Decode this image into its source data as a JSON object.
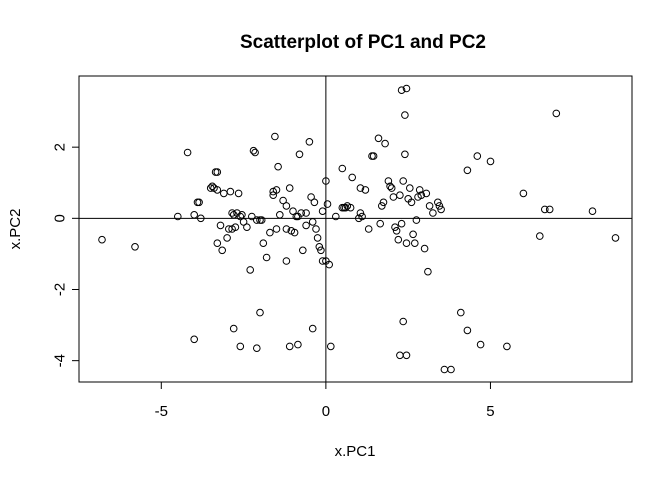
{
  "chart_data": {
    "type": "scatter",
    "title": "Scatterplot of PC1 and PC2",
    "xlabel": "x.PC1",
    "ylabel": "x.PC2",
    "xlim": [
      -7.5,
      9.3
    ],
    "ylim": [
      -4.6,
      4.0
    ],
    "xticks": [
      -5,
      0,
      5
    ],
    "yticks": [
      -4,
      -2,
      0,
      2
    ],
    "xtick_labels": [
      "-5",
      "0",
      "5"
    ],
    "ytick_labels": [
      "-4",
      "-2",
      "0",
      "2"
    ],
    "reference_lines": {
      "h": 0,
      "v": 0
    },
    "marker": "open-circle",
    "grid": false,
    "legend": "none",
    "points": [
      [
        -6.8,
        -0.6
      ],
      [
        -5.8,
        -0.8
      ],
      [
        -4.5,
        0.05
      ],
      [
        -4.2,
        1.85
      ],
      [
        -4.0,
        0.1
      ],
      [
        -3.9,
        0.45
      ],
      [
        -3.85,
        0.45
      ],
      [
        -3.8,
        0.0
      ],
      [
        -3.5,
        0.85
      ],
      [
        -3.45,
        0.9
      ],
      [
        -3.4,
        0.85
      ],
      [
        -3.35,
        1.3
      ],
      [
        -3.3,
        1.3
      ],
      [
        -3.3,
        0.8
      ],
      [
        -3.3,
        -0.7
      ],
      [
        -3.2,
        -0.2
      ],
      [
        -3.15,
        -0.9
      ],
      [
        -3.1,
        0.7
      ],
      [
        -3.0,
        -0.55
      ],
      [
        -2.95,
        -0.3
      ],
      [
        -2.9,
        0.75
      ],
      [
        -2.85,
        -0.3
      ],
      [
        -2.8,
        0.1
      ],
      [
        -2.75,
        -0.25
      ],
      [
        -2.7,
        0.15
      ],
      [
        -2.65,
        0.7
      ],
      [
        -2.6,
        0.05
      ],
      [
        -2.55,
        0.1
      ],
      [
        -2.5,
        -0.1
      ],
      [
        -2.4,
        -0.25
      ],
      [
        -2.3,
        -1.45
      ],
      [
        -2.25,
        0.05
      ],
      [
        -2.2,
        1.9
      ],
      [
        -2.15,
        1.85
      ],
      [
        -2.1,
        -0.05
      ],
      [
        -2.0,
        -0.05
      ],
      [
        -1.95,
        -0.05
      ],
      [
        -1.8,
        -1.1
      ],
      [
        -1.6,
        0.75
      ],
      [
        -1.55,
        2.3
      ],
      [
        -1.5,
        0.8
      ],
      [
        -1.5,
        -0.3
      ],
      [
        -1.45,
        1.45
      ],
      [
        -1.4,
        0.1
      ],
      [
        -1.3,
        0.5
      ],
      [
        -1.2,
        -0.3
      ],
      [
        -1.2,
        -1.2
      ],
      [
        -1.1,
        0.85
      ],
      [
        -1.05,
        -0.35
      ],
      [
        -1.0,
        0.2
      ],
      [
        -0.95,
        -0.4
      ],
      [
        -0.9,
        0.05
      ],
      [
        -0.85,
        0.05
      ],
      [
        -0.8,
        1.8
      ],
      [
        -0.75,
        0.15
      ],
      [
        -0.7,
        -0.9
      ],
      [
        -0.6,
        0.15
      ],
      [
        -0.5,
        2.15
      ],
      [
        -0.45,
        0.6
      ],
      [
        -0.4,
        -0.1
      ],
      [
        -0.35,
        0.45
      ],
      [
        -0.3,
        -0.3
      ],
      [
        -0.25,
        -0.55
      ],
      [
        -0.2,
        -0.8
      ],
      [
        -0.15,
        -0.9
      ],
      [
        -0.1,
        0.2
      ],
      [
        -0.1,
        -1.2
      ],
      [
        0.0,
        1.05
      ],
      [
        0.0,
        -1.2
      ],
      [
        0.05,
        0.4
      ],
      [
        0.1,
        -1.3
      ],
      [
        0.5,
        0.3
      ],
      [
        0.5,
        1.4
      ],
      [
        0.55,
        0.3
      ],
      [
        0.6,
        0.3
      ],
      [
        0.65,
        0.35
      ],
      [
        0.75,
        0.3
      ],
      [
        0.8,
        1.15
      ],
      [
        1.0,
        0.0
      ],
      [
        1.05,
        0.85
      ],
      [
        1.05,
        0.15
      ],
      [
        1.1,
        0.05
      ],
      [
        1.2,
        0.8
      ],
      [
        1.3,
        -0.3
      ],
      [
        1.4,
        1.75
      ],
      [
        1.45,
        1.75
      ],
      [
        1.6,
        2.25
      ],
      [
        1.65,
        -0.15
      ],
      [
        1.7,
        0.35
      ],
      [
        1.75,
        0.45
      ],
      [
        1.8,
        2.1
      ],
      [
        1.9,
        1.05
      ],
      [
        1.95,
        0.9
      ],
      [
        2.0,
        0.85
      ],
      [
        2.05,
        0.6
      ],
      [
        2.1,
        -0.25
      ],
      [
        2.15,
        -0.35
      ],
      [
        2.2,
        -0.6
      ],
      [
        2.25,
        0.65
      ],
      [
        2.3,
        -0.15
      ],
      [
        2.35,
        1.05
      ],
      [
        2.4,
        1.8
      ],
      [
        2.45,
        -0.7
      ],
      [
        2.5,
        0.55
      ],
      [
        2.55,
        0.85
      ],
      [
        2.6,
        0.45
      ],
      [
        2.65,
        -0.45
      ],
      [
        2.7,
        -0.7
      ],
      [
        2.75,
        -0.05
      ],
      [
        2.8,
        0.6
      ],
      [
        2.85,
        0.8
      ],
      [
        2.9,
        0.65
      ],
      [
        3.0,
        -0.85
      ],
      [
        3.05,
        0.7
      ],
      [
        3.1,
        -1.5
      ],
      [
        3.15,
        0.35
      ],
      [
        3.25,
        0.15
      ],
      [
        3.4,
        0.45
      ],
      [
        3.45,
        0.35
      ],
      [
        3.5,
        0.25
      ],
      [
        2.3,
        3.6
      ],
      [
        2.45,
        3.65
      ],
      [
        2.4,
        2.9
      ],
      [
        2.35,
        -2.9
      ],
      [
        2.25,
        -3.85
      ],
      [
        2.45,
        -3.85
      ],
      [
        3.6,
        -4.25
      ],
      [
        3.8,
        -4.25
      ],
      [
        4.1,
        -2.65
      ],
      [
        4.3,
        1.35
      ],
      [
        4.3,
        -3.15
      ],
      [
        4.6,
        1.75
      ],
      [
        4.7,
        -3.55
      ],
      [
        5.0,
        1.6
      ],
      [
        5.5,
        -3.6
      ],
      [
        6.0,
        0.7
      ],
      [
        6.5,
        -0.5
      ],
      [
        6.65,
        0.25
      ],
      [
        6.8,
        0.25
      ],
      [
        7.0,
        2.95
      ],
      [
        8.1,
        0.2
      ],
      [
        8.8,
        -0.55
      ],
      [
        -4.0,
        -3.4
      ],
      [
        -2.8,
        -3.1
      ],
      [
        -2.6,
        -3.6
      ],
      [
        -2.1,
        -3.65
      ],
      [
        -2.0,
        -2.65
      ],
      [
        -1.1,
        -3.6
      ],
      [
        -0.85,
        -3.55
      ],
      [
        -0.4,
        -3.1
      ],
      [
        0.15,
        -3.6
      ],
      [
        -1.9,
        -0.7
      ],
      [
        -1.7,
        -0.4
      ],
      [
        -2.85,
        0.15
      ],
      [
        -1.6,
        0.65
      ],
      [
        -1.2,
        0.35
      ],
      [
        -0.6,
        -0.2
      ],
      [
        0.3,
        0.05
      ]
    ]
  }
}
